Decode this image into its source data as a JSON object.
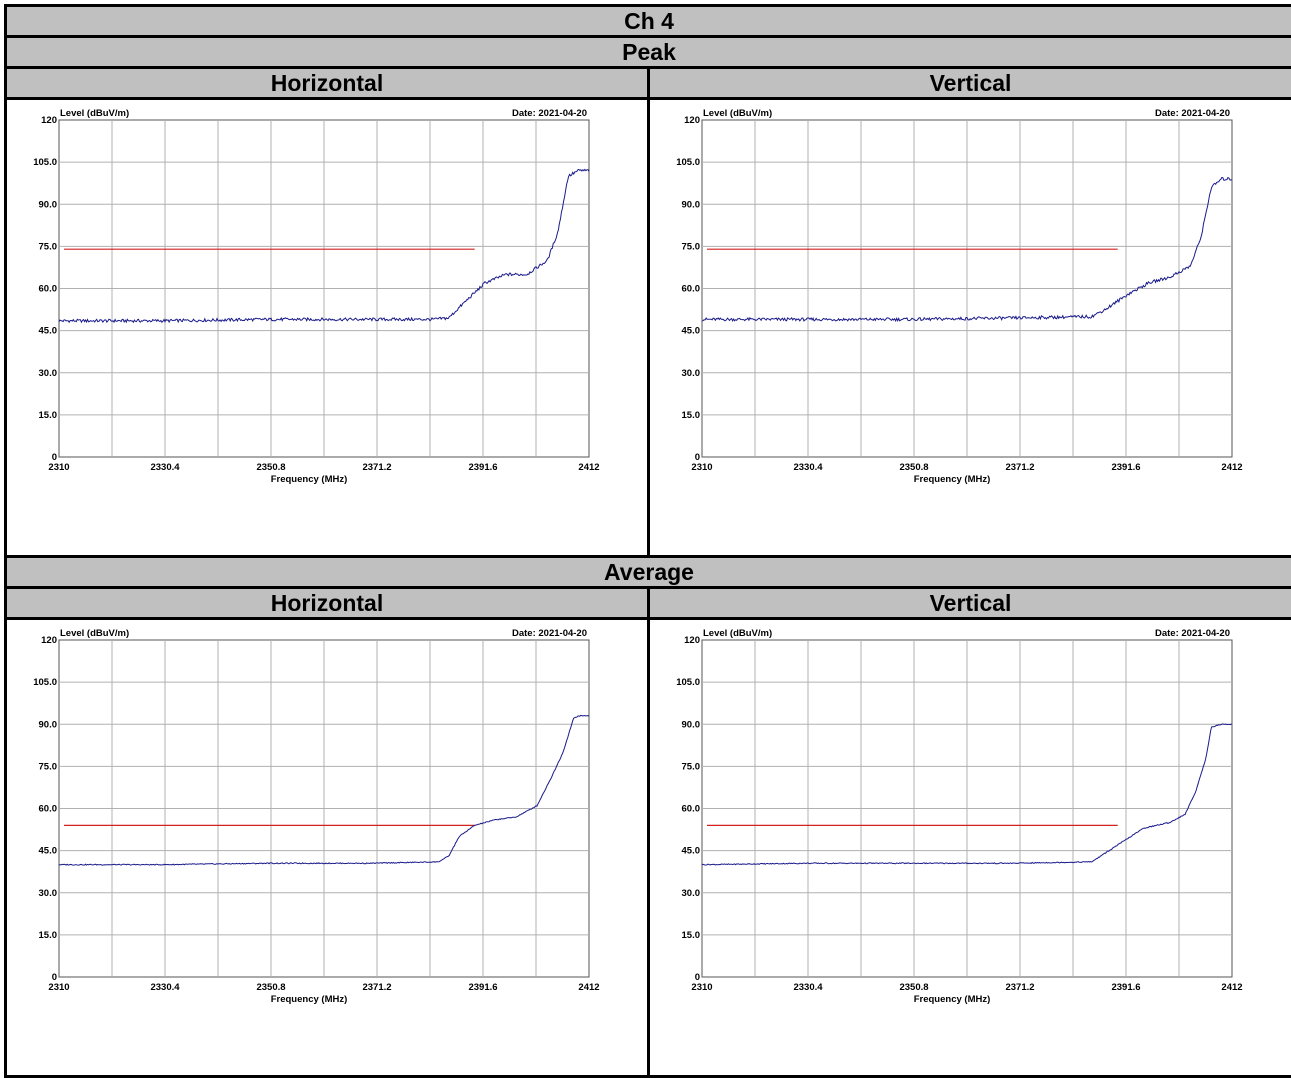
{
  "title": "Ch 4",
  "sections": [
    {
      "label": "Peak",
      "columns": [
        {
          "label": "Horizontal",
          "chart_index": 0
        },
        {
          "label": "Vertical",
          "chart_index": 1
        }
      ]
    },
    {
      "label": "Average",
      "columns": [
        {
          "label": "Horizontal",
          "chart_index": 2
        },
        {
          "label": "Vertical",
          "chart_index": 3
        }
      ]
    }
  ],
  "colors": {
    "trace": "#1a1a8c",
    "limit": "#d42020",
    "grid": "#b0b0b0"
  },
  "chart_data": [
    {
      "type": "line",
      "ylabel": "Level (dBuV/m)",
      "xlabel": "Frequency (MHz)",
      "date": "Date: 2021-04-20",
      "xlim": [
        2310,
        2412
      ],
      "ylim": [
        0,
        120
      ],
      "xticks": [
        "2310",
        "2330.4",
        "2350.8",
        "2371.2",
        "2391.6",
        "2412"
      ],
      "yticks": [
        "0",
        "15.0",
        "30.0",
        "45.0",
        "60.0",
        "75.0",
        "90.0",
        "105.0",
        "120"
      ],
      "grid": true,
      "limit_line": {
        "y": 74,
        "x": [
          2310,
          2390
        ]
      },
      "series": [
        {
          "x": [
            2310,
            2330,
            2350,
            2370,
            2382,
            2385,
            2388,
            2392,
            2396,
            2400,
            2404,
            2406,
            2408,
            2410,
            2412
          ],
          "y": [
            48.5,
            48.5,
            49,
            49,
            49,
            49.5,
            55,
            62,
            65,
            65,
            70,
            80,
            100,
            102,
            102
          ]
        }
      ]
    },
    {
      "type": "line",
      "ylabel": "Level (dBuV/m)",
      "xlabel": "Frequency (MHz)",
      "date": "Date: 2021-04-20",
      "xlim": [
        2310,
        2412
      ],
      "ylim": [
        0,
        120
      ],
      "xticks": [
        "2310",
        "2330.4",
        "2350.8",
        "2371.2",
        "2391.6",
        "2412"
      ],
      "yticks": [
        "0",
        "15.0",
        "30.0",
        "45.0",
        "60.0",
        "75.0",
        "90.0",
        "105.0",
        "120"
      ],
      "grid": true,
      "limit_line": {
        "y": 74,
        "x": [
          2310,
          2390
        ]
      },
      "series": [
        {
          "x": [
            2310,
            2330,
            2350,
            2370,
            2385,
            2388,
            2392,
            2396,
            2400,
            2404,
            2406,
            2408,
            2410,
            2412
          ],
          "y": [
            49,
            49,
            49,
            49.5,
            50,
            53,
            58,
            62,
            64,
            68,
            78,
            96,
            99,
            99
          ]
        }
      ]
    },
    {
      "type": "line",
      "ylabel": "Level (dBuV/m)",
      "xlabel": "Frequency (MHz)",
      "date": "Date: 2021-04-20",
      "xlim": [
        2310,
        2412
      ],
      "ylim": [
        0,
        120
      ],
      "xticks": [
        "2310",
        "2330.4",
        "2350.8",
        "2371.2",
        "2391.6",
        "2412"
      ],
      "yticks": [
        "0",
        "15.0",
        "30.0",
        "45.0",
        "60.0",
        "75.0",
        "90.0",
        "105.0",
        "120"
      ],
      "grid": true,
      "limit_line": {
        "y": 54,
        "x": [
          2310,
          2390
        ]
      },
      "series": [
        {
          "x": [
            2310,
            2330,
            2350,
            2370,
            2383,
            2385,
            2387,
            2390,
            2394,
            2398,
            2402,
            2405,
            2407,
            2409,
            2410,
            2412
          ],
          "y": [
            40,
            40,
            40.5,
            40.5,
            41,
            43,
            50,
            54,
            56,
            57,
            61,
            72,
            80,
            92,
            93,
            93
          ]
        }
      ]
    },
    {
      "type": "line",
      "ylabel": "Level (dBuV/m)",
      "xlabel": "Frequency (MHz)",
      "date": "Date: 2021-04-20",
      "xlim": [
        2310,
        2412
      ],
      "ylim": [
        0,
        120
      ],
      "xticks": [
        "2310",
        "2330.4",
        "2350.8",
        "2371.2",
        "2391.6",
        "2412"
      ],
      "yticks": [
        "0",
        "15.0",
        "30.0",
        "45.0",
        "60.0",
        "75.0",
        "90.0",
        "105.0",
        "120"
      ],
      "grid": true,
      "limit_line": {
        "y": 54,
        "x": [
          2310,
          2390
        ]
      },
      "series": [
        {
          "x": [
            2310,
            2330,
            2350,
            2370,
            2385,
            2390,
            2395,
            2400,
            2403,
            2405,
            2407,
            2408,
            2410,
            2412
          ],
          "y": [
            40,
            40.5,
            40.5,
            40.5,
            41,
            47,
            53,
            55,
            58,
            66,
            78,
            89,
            90,
            90
          ]
        }
      ]
    }
  ]
}
